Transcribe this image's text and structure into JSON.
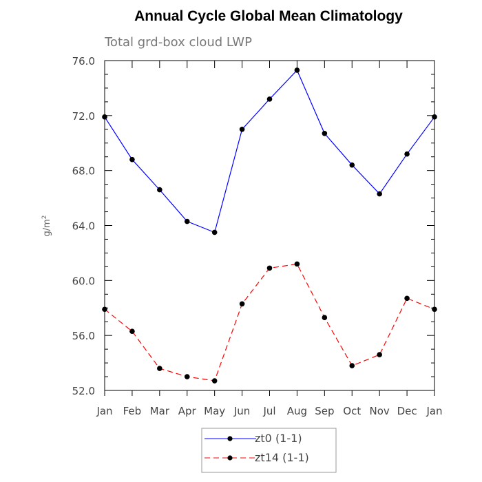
{
  "chart_data": {
    "type": "line",
    "title": "Annual Cycle Global Mean Climatology",
    "subtitle": "Total grd-box cloud LWP",
    "ylabel": "g/m",
    "ylabel_superscript": "2",
    "xlabel": "",
    "categories": [
      "Jan",
      "Feb",
      "Mar",
      "Apr",
      "May",
      "Jun",
      "Jul",
      "Aug",
      "Sep",
      "Oct",
      "Nov",
      "Dec",
      "Jan"
    ],
    "ylim": [
      52,
      76
    ],
    "yticks": [
      52,
      56,
      60,
      64,
      68,
      72,
      76
    ],
    "ytick_labels": [
      "52.0",
      "56.0",
      "60.0",
      "64.0",
      "68.0",
      "72.0",
      "76.0"
    ],
    "grid": false,
    "legend_position": "bottom-center",
    "series": [
      {
        "name": "zt0 (1-1)",
        "color": "#0000ff",
        "dashed": false,
        "marker": "filled-circle",
        "values": [
          71.9,
          68.8,
          66.6,
          64.3,
          63.5,
          71.0,
          73.2,
          75.3,
          70.7,
          68.4,
          66.3,
          69.2,
          71.9
        ]
      },
      {
        "name": "zt14 (1-1)",
        "color": "#ff0000",
        "dashed": true,
        "marker": "filled-circle",
        "values": [
          57.9,
          56.3,
          53.6,
          53.0,
          52.7,
          58.3,
          60.9,
          61.2,
          57.3,
          53.8,
          54.6,
          58.7,
          57.9
        ]
      }
    ]
  }
}
